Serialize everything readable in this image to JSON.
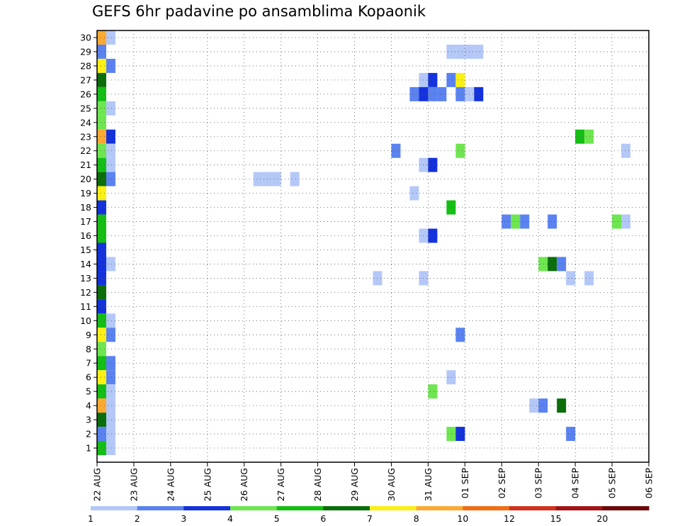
{
  "chart_data": {
    "type": "heatmap",
    "title": "GEFS 6hr padavine po ansamblima Kopaonik",
    "xlabel": "",
    "ylabel": "",
    "x_ticks": [
      "22 AUG",
      "23 AUG",
      "24 AUG",
      "25 AUG",
      "26 AUG",
      "27 AUG",
      "28 AUG",
      "29 AUG",
      "30 AUG",
      "31 AUG",
      "01 SEP",
      "02 SEP",
      "03 SEP",
      "04 SEP",
      "05 SEP",
      "06 SEP"
    ],
    "x_range_days": [
      0,
      15
    ],
    "y_ticks": [
      1,
      2,
      3,
      4,
      5,
      6,
      7,
      8,
      9,
      10,
      11,
      12,
      13,
      14,
      15,
      16,
      17,
      18,
      19,
      20,
      21,
      22,
      23,
      24,
      25,
      26,
      27,
      28,
      29,
      30
    ],
    "y_range": [
      0,
      30.5
    ],
    "grid": true,
    "colorbar": {
      "levels": [
        "1",
        "2",
        "3",
        "4",
        "5",
        "6",
        "7",
        "8",
        "10",
        "12",
        "15",
        "20"
      ],
      "colors": [
        "#b4c8f8",
        "#5a82f0",
        "#1432dc",
        "#6ee650",
        "#14be14",
        "#0a6e0a",
        "#faf014",
        "#faaa32",
        "#f06e14",
        "#d2321e",
        "#a01414",
        "#6e0a0a"
      ]
    },
    "series_note": "cells: [day_offset_from_22_AUG, ensemble_member, color_class_index]",
    "cells": [
      [
        0.0,
        30,
        7
      ],
      [
        0.25,
        30,
        0
      ],
      [
        0.0,
        29,
        1
      ],
      [
        0.0,
        28,
        6
      ],
      [
        0.25,
        28,
        1
      ],
      [
        0.0,
        27,
        5
      ],
      [
        0.0,
        26,
        4
      ],
      [
        0.0,
        25,
        3
      ],
      [
        0.25,
        25,
        0
      ],
      [
        0.0,
        24,
        3
      ],
      [
        0.0,
        23,
        7
      ],
      [
        0.25,
        23,
        2
      ],
      [
        0.0,
        22,
        3
      ],
      [
        0.25,
        22,
        0
      ],
      [
        0.0,
        21,
        4
      ],
      [
        0.25,
        21,
        0
      ],
      [
        0.0,
        20,
        5
      ],
      [
        0.25,
        20,
        1
      ],
      [
        0.0,
        19,
        6
      ],
      [
        0.0,
        18,
        2
      ],
      [
        0.0,
        17,
        4
      ],
      [
        0.0,
        16,
        4
      ],
      [
        0.0,
        15,
        2
      ],
      [
        0.0,
        14,
        2
      ],
      [
        0.25,
        14,
        0
      ],
      [
        0.0,
        13,
        2
      ],
      [
        0.0,
        12,
        5
      ],
      [
        0.0,
        11,
        2
      ],
      [
        0.0,
        10,
        4
      ],
      [
        0.25,
        10,
        0
      ],
      [
        0.0,
        9,
        6
      ],
      [
        0.25,
        9,
        1
      ],
      [
        0.0,
        8,
        3
      ],
      [
        0.0,
        7,
        4
      ],
      [
        0.25,
        7,
        1
      ],
      [
        0.0,
        6,
        6
      ],
      [
        0.25,
        6,
        1
      ],
      [
        0.0,
        5,
        4
      ],
      [
        0.25,
        5,
        0
      ],
      [
        0.0,
        4,
        7
      ],
      [
        0.25,
        4,
        0
      ],
      [
        0.0,
        3,
        5
      ],
      [
        0.25,
        3,
        0
      ],
      [
        0.0,
        2,
        1
      ],
      [
        0.25,
        2,
        0
      ],
      [
        0.0,
        1,
        4
      ],
      [
        0.25,
        1,
        0
      ],
      [
        9.5,
        29,
        0
      ],
      [
        9.75,
        29,
        0
      ],
      [
        10.0,
        29,
        0
      ],
      [
        10.25,
        29,
        0
      ],
      [
        8.75,
        27,
        0
      ],
      [
        9.0,
        27,
        2
      ],
      [
        9.5,
        27,
        1
      ],
      [
        9.75,
        27,
        6
      ],
      [
        8.5,
        26,
        1
      ],
      [
        8.75,
        26,
        2
      ],
      [
        9.0,
        26,
        1
      ],
      [
        9.25,
        26,
        1
      ],
      [
        9.75,
        26,
        1
      ],
      [
        10.0,
        26,
        0
      ],
      [
        10.25,
        26,
        2
      ],
      [
        13.0,
        23,
        4
      ],
      [
        13.25,
        23,
        3
      ],
      [
        8.0,
        22,
        1
      ],
      [
        9.75,
        22,
        3
      ],
      [
        14.25,
        22,
        0
      ],
      [
        8.75,
        21,
        0
      ],
      [
        9.0,
        21,
        2
      ],
      [
        4.25,
        20,
        0
      ],
      [
        4.5,
        20,
        0
      ],
      [
        4.75,
        20,
        0
      ],
      [
        5.25,
        20,
        0
      ],
      [
        8.5,
        19,
        0
      ],
      [
        9.5,
        18,
        4
      ],
      [
        11.0,
        17,
        1
      ],
      [
        11.25,
        17,
        3
      ],
      [
        11.5,
        17,
        1
      ],
      [
        12.25,
        17,
        1
      ],
      [
        14.0,
        17,
        3
      ],
      [
        14.25,
        17,
        0
      ],
      [
        8.75,
        16,
        0
      ],
      [
        9.0,
        16,
        2
      ],
      [
        12.0,
        14,
        3
      ],
      [
        12.25,
        14,
        5
      ],
      [
        12.5,
        14,
        1
      ],
      [
        7.5,
        13,
        0
      ],
      [
        8.75,
        13,
        0
      ],
      [
        12.75,
        13,
        0
      ],
      [
        13.25,
        13,
        0
      ],
      [
        9.75,
        9,
        1
      ],
      [
        9.5,
        6,
        0
      ],
      [
        9.0,
        5,
        3
      ],
      [
        11.75,
        4,
        0
      ],
      [
        12.0,
        4,
        1
      ],
      [
        12.5,
        4,
        5
      ],
      [
        9.5,
        2,
        3
      ],
      [
        9.75,
        2,
        2
      ],
      [
        12.75,
        2,
        1
      ]
    ]
  }
}
